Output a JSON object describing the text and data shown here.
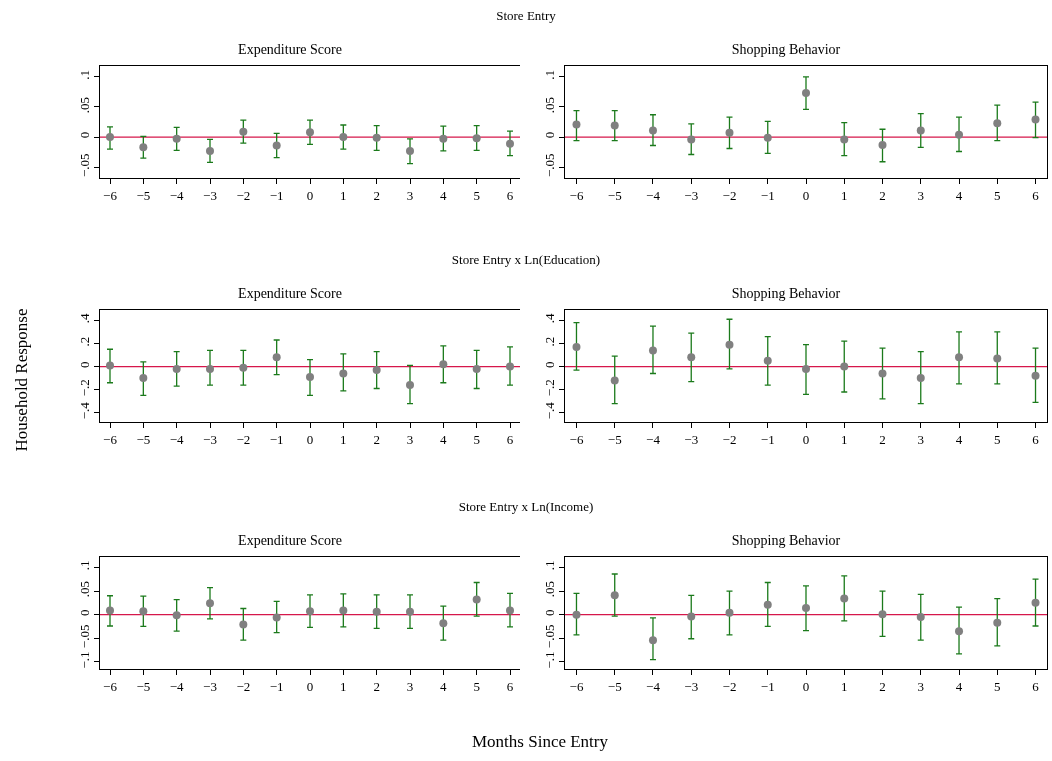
{
  "chart_data": [
    {
      "type": "scatter",
      "subtitle": "Store Entry",
      "title": "Expenditure Score",
      "x": [
        -6,
        -5,
        -4,
        -3,
        -2,
        -1,
        0,
        1,
        2,
        3,
        4,
        5,
        6
      ],
      "marker": "circle",
      "grid": false,
      "series": [
        {
          "color": "#808080",
          "values": [
            0,
            -0.017,
            -0.003,
            -0.023,
            0.009,
            -0.014,
            0.008,
            0,
            -0.001,
            -0.023,
            -0.003,
            -0.002,
            -0.011
          ],
          "errors": [
            [
              -0.02,
              0.017
            ],
            [
              -0.035,
              0.001
            ],
            [
              -0.022,
              0.016
            ],
            [
              -0.042,
              -0.004
            ],
            [
              -0.01,
              0.028
            ],
            [
              -0.034,
              0.006
            ],
            [
              -0.012,
              0.028
            ],
            [
              -0.02,
              0.02
            ],
            [
              -0.022,
              0.019
            ],
            [
              -0.044,
              -0.003
            ],
            [
              -0.023,
              0.018
            ],
            [
              -0.022,
              0.019
            ],
            [
              -0.031,
              0.01
            ]
          ]
        }
      ],
      "xlim": [
        -6.3,
        6.3
      ],
      "xticks": [
        {
          "value": -6,
          "label": "−6"
        },
        {
          "value": -5,
          "label": "−5"
        },
        {
          "value": -4,
          "label": "−4"
        },
        {
          "value": -3,
          "label": "−3"
        },
        {
          "value": -2,
          "label": "−2"
        },
        {
          "value": -1,
          "label": "−1"
        },
        0,
        1,
        2,
        3,
        4,
        5,
        6
      ],
      "ylim": [
        -0.068,
        0.118
      ],
      "yticks": [
        {
          "value": -0.05,
          "label": "−.05"
        },
        {
          "value": 0,
          "label": "0"
        },
        {
          "value": 0.05,
          "label": ".05"
        },
        {
          "value": 0.1,
          "label": ".1"
        }
      ],
      "ref_lines": [
        {
          "axis": "y",
          "value": 0,
          "color": "#d6174b"
        }
      ]
    },
    {
      "type": "scatter",
      "title": "Shopping Behavior",
      "x": [
        -6,
        -5,
        -4,
        -3,
        -2,
        -1,
        0,
        1,
        2,
        3,
        4,
        5,
        6
      ],
      "marker": "circle",
      "grid": false,
      "series": [
        {
          "color": "#808080",
          "values": [
            0.021,
            0.019,
            0.011,
            -0.004,
            0.007,
            -0.001,
            0.073,
            -0.004,
            -0.013,
            0.011,
            0.004,
            0.023,
            0.029
          ],
          "errors": [
            [
              -0.006,
              0.044
            ],
            [
              -0.006,
              0.044
            ],
            [
              -0.014,
              0.037
            ],
            [
              -0.029,
              0.022
            ],
            [
              -0.019,
              0.033
            ],
            [
              -0.027,
              0.026
            ],
            [
              0.046,
              0.1
            ],
            [
              -0.031,
              0.024
            ],
            [
              -0.041,
              0.013
            ],
            [
              -0.017,
              0.039
            ],
            [
              -0.024,
              0.033
            ],
            [
              -0.006,
              0.053
            ],
            [
              -0.001,
              0.058
            ]
          ]
        }
      ],
      "xlim": [
        -6.3,
        6.3
      ],
      "xticks": [
        {
          "value": -6,
          "label": "−6"
        },
        {
          "value": -5,
          "label": "−5"
        },
        {
          "value": -4,
          "label": "−4"
        },
        {
          "value": -3,
          "label": "−3"
        },
        {
          "value": -2,
          "label": "−2"
        },
        {
          "value": -1,
          "label": "−1"
        },
        0,
        1,
        2,
        3,
        4,
        5,
        6
      ],
      "ylim": [
        -0.068,
        0.118
      ],
      "yticks": [
        {
          "value": -0.05,
          "label": "−.05"
        },
        {
          "value": 0,
          "label": "0"
        },
        {
          "value": 0.05,
          "label": ".05"
        },
        {
          "value": 0.1,
          "label": ".1"
        }
      ],
      "ref_lines": [
        {
          "axis": "y",
          "value": 0,
          "color": "#d6174b"
        }
      ]
    },
    {
      "type": "scatter",
      "subtitle": "Store Entry x Ln(Education)",
      "title": "Expenditure Score",
      "ylabel": "Household Response",
      "x": [
        -6,
        -5,
        -4,
        -3,
        -2,
        -1,
        0,
        1,
        2,
        3,
        4,
        5,
        6
      ],
      "marker": "circle",
      "grid": false,
      "series": [
        {
          "color": "#808080",
          "values": [
            0.01,
            -0.1,
            -0.02,
            -0.02,
            -0.01,
            0.08,
            -0.09,
            -0.06,
            -0.03,
            -0.16,
            0.02,
            -0.02,
            0
          ],
          "errors": [
            [
              -0.14,
              0.15
            ],
            [
              -0.25,
              0.04
            ],
            [
              -0.17,
              0.13
            ],
            [
              -0.16,
              0.14
            ],
            [
              -0.16,
              0.14
            ],
            [
              -0.07,
              0.23
            ],
            [
              -0.25,
              0.06
            ],
            [
              -0.21,
              0.11
            ],
            [
              -0.19,
              0.13
            ],
            [
              -0.32,
              0.01
            ],
            [
              -0.14,
              0.18
            ],
            [
              -0.19,
              0.14
            ],
            [
              -0.16,
              0.17
            ]
          ]
        }
      ],
      "xlim": [
        -6.3,
        6.3
      ],
      "xticks": [
        {
          "value": -6,
          "label": "−6"
        },
        {
          "value": -5,
          "label": "−5"
        },
        {
          "value": -4,
          "label": "−4"
        },
        {
          "value": -3,
          "label": "−3"
        },
        {
          "value": -2,
          "label": "−2"
        },
        {
          "value": -1,
          "label": "−1"
        },
        0,
        1,
        2,
        3,
        4,
        5,
        6
      ],
      "ylim": [
        -0.48,
        0.49
      ],
      "yticks": [
        {
          "value": -0.4,
          "label": "−.4"
        },
        {
          "value": -0.2,
          "label": "−.2"
        },
        {
          "value": 0,
          "label": "0"
        },
        {
          "value": 0.2,
          "label": ".2"
        },
        {
          "value": 0.4,
          "label": ".4"
        }
      ],
      "ref_lines": [
        {
          "axis": "y",
          "value": 0,
          "color": "#d6174b"
        }
      ]
    },
    {
      "type": "scatter",
      "title": "Shopping Behavior",
      "x": [
        -6,
        -5,
        -4,
        -3,
        -2,
        -1,
        0,
        1,
        2,
        3,
        4,
        5,
        6
      ],
      "marker": "circle",
      "grid": false,
      "series": [
        {
          "color": "#808080",
          "values": [
            0.17,
            -0.12,
            0.14,
            0.08,
            0.19,
            0.05,
            -0.02,
            0,
            -0.06,
            -0.1,
            0.08,
            0.07,
            -0.08
          ],
          "errors": [
            [
              -0.03,
              0.38
            ],
            [
              -0.32,
              0.09
            ],
            [
              -0.06,
              0.35
            ],
            [
              -0.13,
              0.29
            ],
            [
              -0.02,
              0.41
            ],
            [
              -0.16,
              0.26
            ],
            [
              -0.24,
              0.19
            ],
            [
              -0.22,
              0.22
            ],
            [
              -0.28,
              0.16
            ],
            [
              -0.32,
              0.13
            ],
            [
              -0.15,
              0.3
            ],
            [
              -0.15,
              0.3
            ],
            [
              -0.31,
              0.16
            ]
          ]
        }
      ],
      "xlim": [
        -6.3,
        6.3
      ],
      "xticks": [
        {
          "value": -6,
          "label": "−6"
        },
        {
          "value": -5,
          "label": "−5"
        },
        {
          "value": -4,
          "label": "−4"
        },
        {
          "value": -3,
          "label": "−3"
        },
        {
          "value": -2,
          "label": "−2"
        },
        {
          "value": -1,
          "label": "−1"
        },
        0,
        1,
        2,
        3,
        4,
        5,
        6
      ],
      "ylim": [
        -0.48,
        0.49
      ],
      "yticks": [
        {
          "value": -0.4,
          "label": "−.4"
        },
        {
          "value": -0.2,
          "label": "−.2"
        },
        {
          "value": 0,
          "label": "0"
        },
        {
          "value": 0.2,
          "label": ".2"
        },
        {
          "value": 0.4,
          "label": ".4"
        }
      ],
      "ref_lines": [
        {
          "axis": "y",
          "value": 0,
          "color": "#d6174b"
        }
      ]
    },
    {
      "type": "scatter",
      "subtitle": "Store Entry x Ln(Income)",
      "title": "Expenditure Score",
      "xlabel": "Months Since Entry",
      "x": [
        -6,
        -5,
        -4,
        -3,
        -2,
        -1,
        0,
        1,
        2,
        3,
        4,
        5,
        6
      ],
      "marker": "circle",
      "grid": false,
      "series": [
        {
          "color": "#808080",
          "values": [
            0.009,
            0.007,
            -0.001,
            0.024,
            -0.021,
            -0.006,
            0.007,
            0.009,
            0.006,
            0.006,
            -0.018,
            0.032,
            0.009
          ],
          "errors": [
            [
              -0.024,
              0.04
            ],
            [
              -0.025,
              0.039
            ],
            [
              -0.035,
              0.032
            ],
            [
              -0.009,
              0.057
            ],
            [
              -0.054,
              0.013
            ],
            [
              -0.038,
              0.028
            ],
            [
              -0.027,
              0.042
            ],
            [
              -0.026,
              0.044
            ],
            [
              -0.029,
              0.042
            ],
            [
              -0.029,
              0.042
            ],
            [
              -0.054,
              0.018
            ],
            [
              -0.003,
              0.068
            ],
            [
              -0.026,
              0.045
            ]
          ]
        }
      ],
      "xlim": [
        -6.3,
        6.3
      ],
      "xticks": [
        {
          "value": -6,
          "label": "−6"
        },
        {
          "value": -5,
          "label": "−5"
        },
        {
          "value": -4,
          "label": "−4"
        },
        {
          "value": -3,
          "label": "−3"
        },
        {
          "value": -2,
          "label": "−2"
        },
        {
          "value": -1,
          "label": "−1"
        },
        0,
        1,
        2,
        3,
        4,
        5,
        6
      ],
      "ylim": [
        -0.115,
        0.122
      ],
      "yticks": [
        {
          "value": -0.1,
          "label": "−.1"
        },
        {
          "value": -0.05,
          "label": "−.05"
        },
        {
          "value": 0,
          "label": "0"
        },
        {
          "value": 0.05,
          "label": ".05"
        },
        {
          "value": 0.1,
          "label": ".1"
        }
      ],
      "ref_lines": [
        {
          "axis": "y",
          "value": 0,
          "color": "#d6174b"
        }
      ]
    },
    {
      "type": "scatter",
      "title": "Shopping Behavior",
      "x": [
        -6,
        -5,
        -4,
        -3,
        -2,
        -1,
        0,
        1,
        2,
        3,
        4,
        5,
        6
      ],
      "marker": "circle",
      "grid": false,
      "series": [
        {
          "color": "#808080",
          "values": [
            0,
            0.041,
            -0.054,
            -0.004,
            0.004,
            0.021,
            0.014,
            0.034,
            0.001,
            -0.005,
            -0.035,
            -0.017,
            0.025
          ],
          "errors": [
            [
              -0.043,
              0.045
            ],
            [
              -0.003,
              0.086
            ],
            [
              -0.095,
              -0.007
            ],
            [
              -0.051,
              0.041
            ],
            [
              -0.043,
              0.05
            ],
            [
              -0.025,
              0.068
            ],
            [
              -0.034,
              0.061
            ],
            [
              -0.013,
              0.082
            ],
            [
              -0.046,
              0.05
            ],
            [
              -0.054,
              0.043
            ],
            [
              -0.083,
              0.016
            ],
            [
              -0.066,
              0.034
            ],
            [
              -0.024,
              0.075
            ]
          ]
        }
      ],
      "xlim": [
        -6.3,
        6.3
      ],
      "xticks": [
        {
          "value": -6,
          "label": "−6"
        },
        {
          "value": -5,
          "label": "−5"
        },
        {
          "value": -4,
          "label": "−4"
        },
        {
          "value": -3,
          "label": "−3"
        },
        {
          "value": -2,
          "label": "−2"
        },
        {
          "value": -1,
          "label": "−1"
        },
        0,
        1,
        2,
        3,
        4,
        5,
        6
      ],
      "ylim": [
        -0.115,
        0.122
      ],
      "yticks": [
        {
          "value": -0.1,
          "label": "−.1"
        },
        {
          "value": -0.05,
          "label": "−.05"
        },
        {
          "value": 0,
          "label": "0"
        },
        {
          "value": 0.05,
          "label": ".05"
        },
        {
          "value": 0.1,
          "label": ".1"
        }
      ],
      "ref_lines": [
        {
          "axis": "y",
          "value": 0,
          "color": "#d6174b"
        }
      ]
    }
  ]
}
